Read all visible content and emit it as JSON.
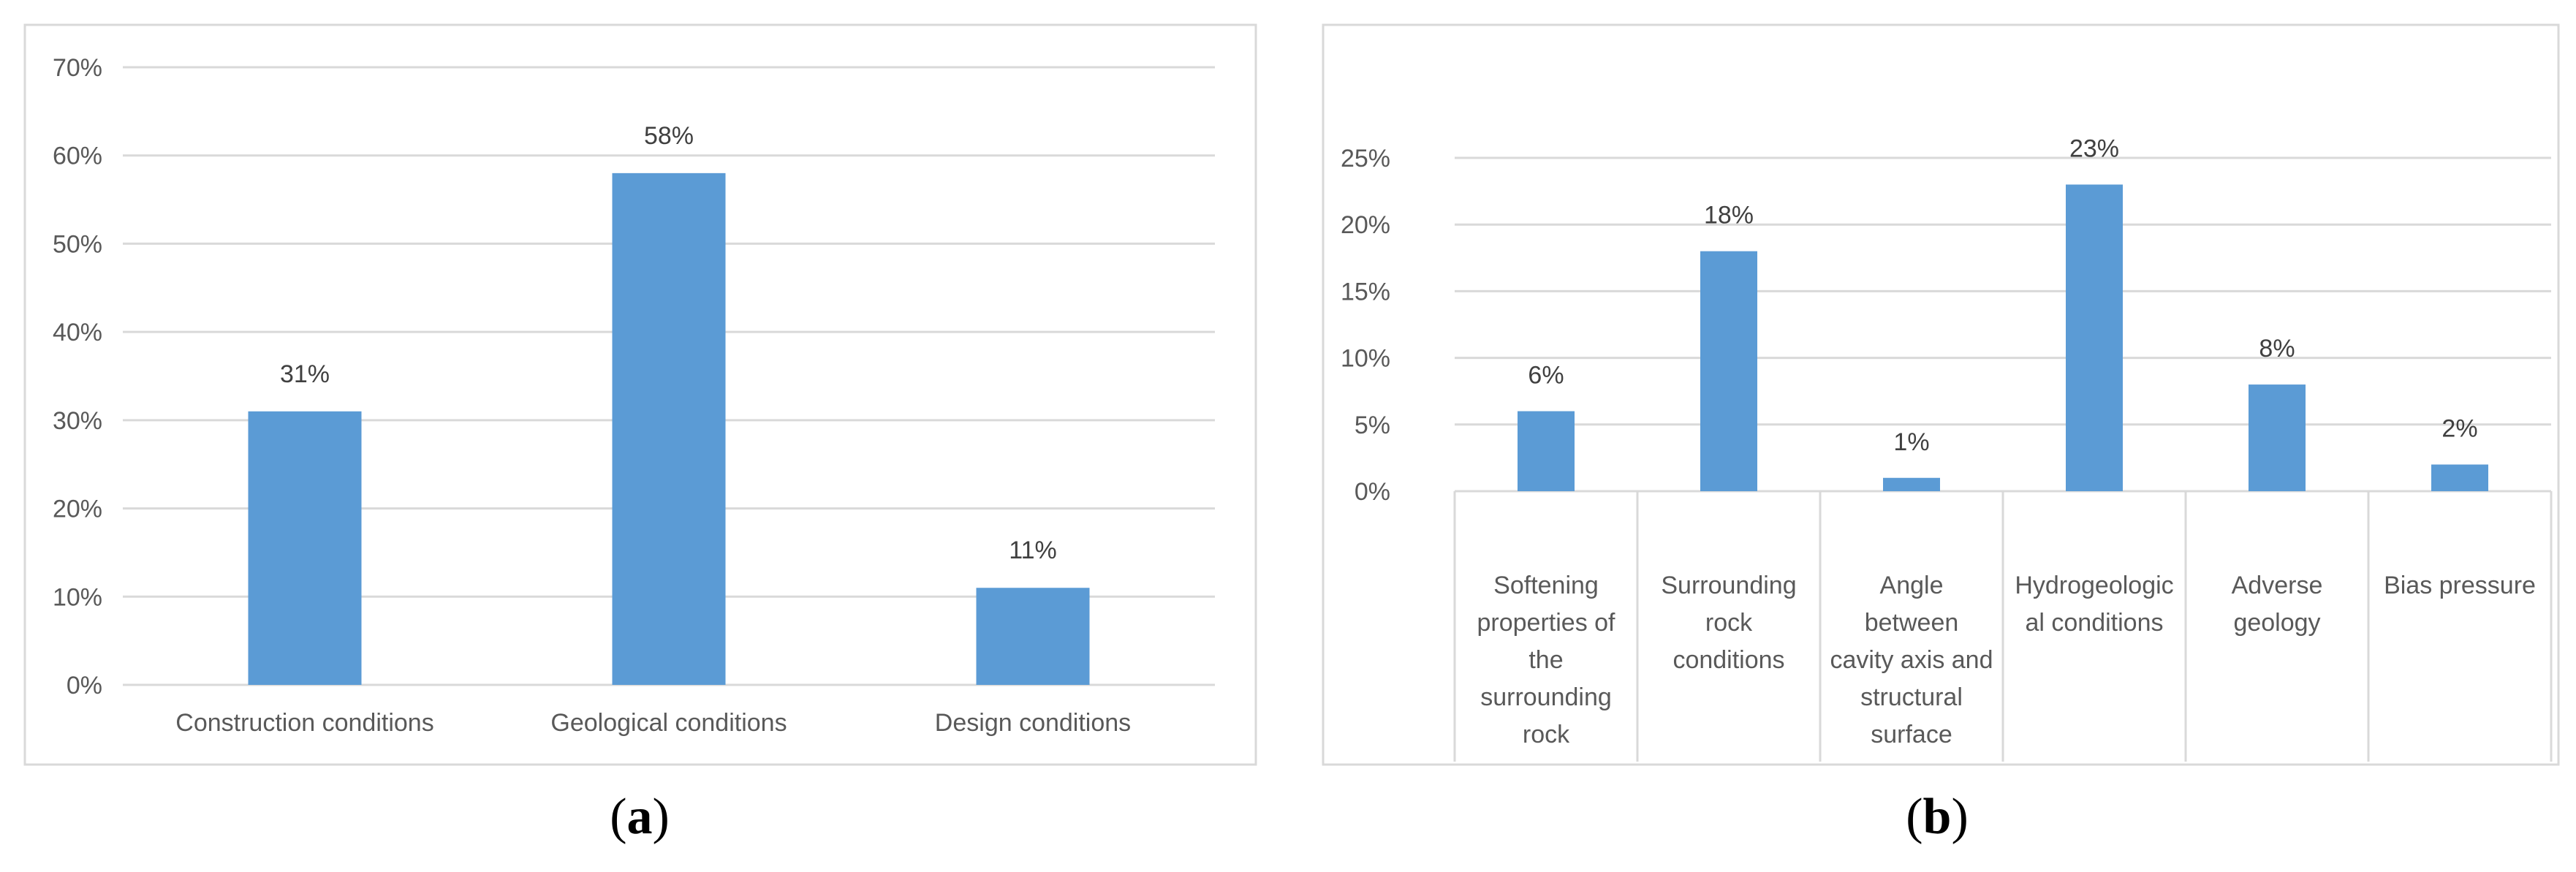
{
  "chart_data": [
    {
      "type": "bar",
      "panel_label": "a",
      "categories": [
        "Construction conditions",
        "Geological conditions",
        "Design conditions"
      ],
      "values": [
        31,
        58,
        11
      ],
      "data_labels": [
        "31%",
        "58%",
        "11%"
      ],
      "ylim": [
        0,
        70
      ],
      "yticks": [
        0,
        10,
        20,
        30,
        40,
        50,
        60,
        70
      ],
      "ytick_labels": [
        "0%",
        "10%",
        "20%",
        "30%",
        "40%",
        "50%",
        "60%",
        "70%"
      ],
      "bar_color": "#5B9BD5",
      "grid": true
    },
    {
      "type": "bar",
      "panel_label": "b",
      "categories": [
        [
          "Softening",
          "properties of",
          "the",
          "surrounding",
          "rock"
        ],
        [
          "Surrounding",
          "rock",
          "conditions"
        ],
        [
          "Angle",
          "between",
          "cavity axis and",
          "structural",
          "surface"
        ],
        [
          "Hydrogeologic",
          "al conditions"
        ],
        [
          "Adverse",
          "geology"
        ],
        [
          "Bias pressure"
        ]
      ],
      "values": [
        6,
        18,
        1,
        23,
        8,
        2
      ],
      "data_labels": [
        "6%",
        "18%",
        "1%",
        "23%",
        "8%",
        "2%"
      ],
      "ylim": [
        0,
        25
      ],
      "yticks": [
        0,
        5,
        10,
        15,
        20,
        25
      ],
      "ytick_labels": [
        "0%",
        "5%",
        "10%",
        "15%",
        "20%",
        "25%"
      ],
      "bar_color": "#5B9BD5",
      "grid": true
    }
  ]
}
